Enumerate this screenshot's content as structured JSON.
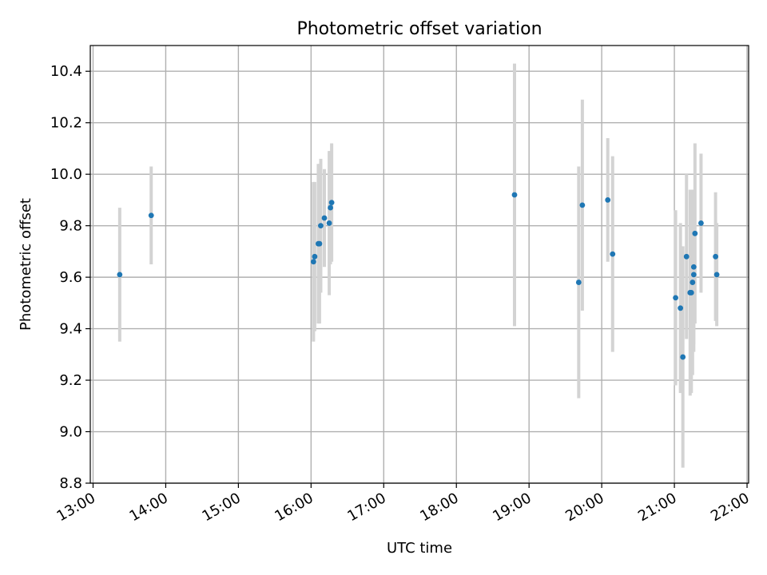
{
  "chart_data": {
    "type": "scatter",
    "title": "Photometric offset variation",
    "xlabel": "UTC time",
    "ylabel": "Photometric offset",
    "x_axis_type": "time",
    "xlim": [
      "13:00",
      "22:00"
    ],
    "ylim": [
      8.8,
      10.5
    ],
    "xticks": [
      "13:00",
      "14:00",
      "15:00",
      "16:00",
      "17:00",
      "18:00",
      "19:00",
      "20:00",
      "21:00",
      "22:00"
    ],
    "yticks": [
      8.8,
      9.0,
      9.2,
      9.4,
      9.6,
      9.8,
      10.0,
      10.2,
      10.4
    ],
    "ytick_labels": [
      "8.8",
      "9.0",
      "9.2",
      "9.4",
      "9.6",
      "9.8",
      "10.0",
      "10.2",
      "10.4"
    ],
    "grid": true,
    "marker_color": "#1f77b4",
    "errorbar_color": "#d3d3d3",
    "series": [
      {
        "points": [
          {
            "x": "13:22",
            "y": 9.61,
            "yerr": 0.26
          },
          {
            "x": "13:48",
            "y": 9.84,
            "yerr": 0.19
          },
          {
            "x": "16:02",
            "y": 9.66,
            "yerr": 0.31
          },
          {
            "x": "16:03",
            "y": 9.68,
            "yerr": 0.29
          },
          {
            "x": "16:06",
            "y": 9.73,
            "yerr": 0.31
          },
          {
            "x": "16:07",
            "y": 9.73,
            "yerr": 0.31
          },
          {
            "x": "16:08",
            "y": 9.8,
            "yerr": 0.26
          },
          {
            "x": "16:11",
            "y": 9.83,
            "yerr": 0.19
          },
          {
            "x": "16:15",
            "y": 9.81,
            "yerr": 0.28
          },
          {
            "x": "16:16",
            "y": 9.87,
            "yerr": 0.22
          },
          {
            "x": "16:17",
            "y": 9.89,
            "yerr": 0.23
          },
          {
            "x": "18:48",
            "y": 9.92,
            "yerr": 0.51
          },
          {
            "x": "19:41",
            "y": 9.58,
            "yerr": 0.45
          },
          {
            "x": "19:44",
            "y": 9.88,
            "yerr": 0.41
          },
          {
            "x": "20:05",
            "y": 9.9,
            "yerr": 0.24
          },
          {
            "x": "20:09",
            "y": 9.69,
            "yerr": 0.38
          },
          {
            "x": "21:01",
            "y": 9.52,
            "yerr": 0.34
          },
          {
            "x": "21:05",
            "y": 9.48,
            "yerr": 0.33
          },
          {
            "x": "21:07",
            "y": 9.29,
            "yerr": 0.43
          },
          {
            "x": "21:10",
            "y": 9.68,
            "yerr": 0.32
          },
          {
            "x": "21:13",
            "y": 9.54,
            "yerr": 0.4
          },
          {
            "x": "21:14",
            "y": 9.54,
            "yerr": 0.39
          },
          {
            "x": "21:15",
            "y": 9.58,
            "yerr": 0.36
          },
          {
            "x": "21:16",
            "y": 9.64,
            "yerr": 0.3
          },
          {
            "x": "21:16",
            "y": 9.61,
            "yerr": 0.3
          },
          {
            "x": "21:17",
            "y": 9.77,
            "yerr": 0.35
          },
          {
            "x": "21:22",
            "y": 9.81,
            "yerr": 0.27
          },
          {
            "x": "21:34",
            "y": 9.68,
            "yerr": 0.25
          },
          {
            "x": "21:35",
            "y": 9.61,
            "yerr": 0.2
          }
        ]
      }
    ]
  }
}
